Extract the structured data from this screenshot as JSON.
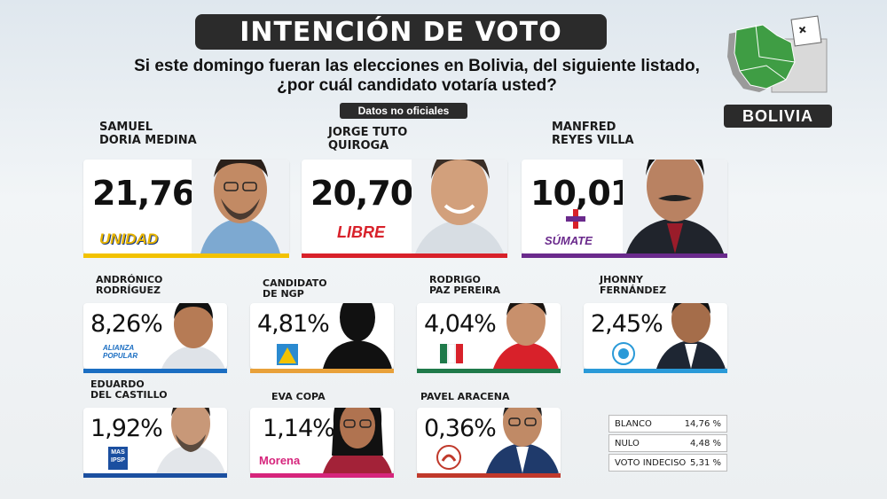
{
  "header": {
    "title": "INTENCIÓN DE VOTO",
    "question": "Si este domingo fueran las elecciones en Bolivia, del siguiente listado, ¿por cuál candidato votaría usted?",
    "disclaimer": "Datos no oficiales"
  },
  "logo": {
    "label": "BOLIVIA"
  },
  "candidates": [
    {
      "name_line1": "SAMUEL",
      "name_line2": "DORIA MEDINA",
      "value": "21,76%",
      "party": "UNIDAD",
      "bar_color": "#f2c200"
    },
    {
      "name_line1": "JORGE TUTO",
      "name_line2": "QUIROGA",
      "value": "20,70%",
      "party": "LIBRE",
      "bar_color": "#d8212a"
    },
    {
      "name_line1": "MANFRED",
      "name_line2": "REYES VILLA",
      "value": "10,01%",
      "party": "SÚMATE",
      "bar_color": "#6a2a8c"
    },
    {
      "name_line1": "ANDRÓNICO",
      "name_line2": "RODRÍGUEZ",
      "value": "8,26%",
      "party": "ALIANZA POPULAR",
      "bar_color": "#1b6ec2"
    },
    {
      "name_line1": "CANDIDATO",
      "name_line2": "DE NGP",
      "value": "4,81%",
      "party": "",
      "bar_color": "#e8a13a"
    },
    {
      "name_line1": "RODRIGO",
      "name_line2": "PAZ PEREIRA",
      "value": "4,04%",
      "party": "",
      "bar_color": "#1f7a4a"
    },
    {
      "name_line1": "JHONNY",
      "name_line2": "FERNÁNDEZ",
      "value": "2,45%",
      "party": "",
      "bar_color": "#2a9ad8"
    },
    {
      "name_line1": "EDUARDO",
      "name_line2": "DEL CASTILLO",
      "value": "1,92%",
      "party": "MAS IPSP",
      "bar_color": "#1b4fa0"
    },
    {
      "name_line1": "EVA COPA",
      "name_line2": "",
      "value": "1,14%",
      "party": "Morena",
      "bar_color": "#d6257c"
    },
    {
      "name_line1": "PAVEL ARACENA",
      "name_line2": "",
      "value": "0,36%",
      "party": "",
      "bar_color": "#c0392b"
    }
  ],
  "others": [
    {
      "label": "BLANCO",
      "value": "14,76 %"
    },
    {
      "label": "NULO",
      "value": "4,48 %"
    },
    {
      "label": "VOTO INDECISO",
      "value": "5,31 %"
    }
  ],
  "chart_data": {
    "type": "bar",
    "categories": [
      "SAMUEL DORIA MEDINA",
      "JORGE TUTO QUIROGA",
      "MANFRED REYES VILLA",
      "ANDRÓNICO RODRÍGUEZ",
      "CANDIDATO DE NGP",
      "RODRIGO PAZ PEREIRA",
      "JHONNY FERNÁNDEZ",
      "EDUARDO DEL CASTILLO",
      "EVA COPA",
      "PAVEL ARACENA",
      "BLANCO",
      "NULO",
      "VOTO INDECISO"
    ],
    "values": [
      21.76,
      20.7,
      10.01,
      8.26,
      4.81,
      4.04,
      2.45,
      1.92,
      1.14,
      0.36,
      14.76,
      4.48,
      5.31
    ],
    "title": "INTENCIÓN DE VOTO",
    "xlabel": "",
    "ylabel": ""
  }
}
